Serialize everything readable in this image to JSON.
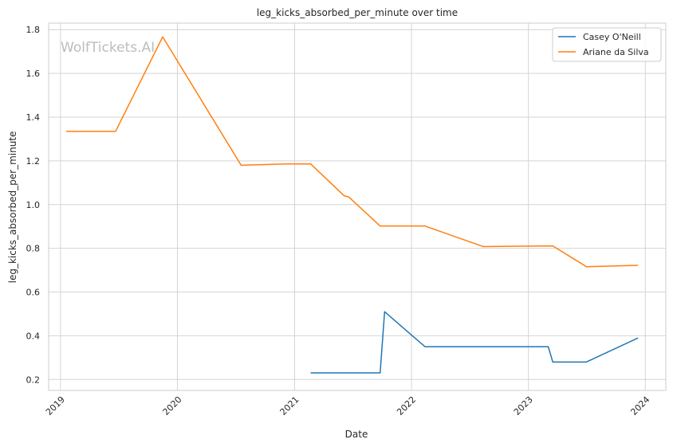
{
  "chart_data": {
    "type": "line",
    "title": "leg_kicks_absorbed_per_minute over time",
    "xlabel": "Date",
    "ylabel": "leg_kicks_absorbed_per_minute",
    "watermark": "WolfTickets.AI",
    "xlim": [
      "2018-11-25",
      "2024-03-05"
    ],
    "ylim": [
      0.15,
      1.83
    ],
    "x_ticks": [
      "2019-01-01",
      "2020-01-01",
      "2021-01-01",
      "2022-01-01",
      "2023-01-01",
      "2024-01-01"
    ],
    "x_tick_labels": [
      "2019",
      "2020",
      "2021",
      "2022",
      "2023",
      "2024"
    ],
    "y_ticks": [
      0.2,
      0.4,
      0.6,
      0.8,
      1.0,
      1.2,
      1.4,
      1.6,
      1.8
    ],
    "y_tick_labels": [
      "0.2",
      "0.4",
      "0.6",
      "0.8",
      "1.0",
      "1.2",
      "1.4",
      "1.6",
      "1.8"
    ],
    "grid": true,
    "legend_position": "top-right",
    "series": [
      {
        "name": "Casey O'Neill",
        "color": "#1f77b4",
        "points": [
          {
            "x": "2021-02-20",
            "y": 0.23
          },
          {
            "x": "2021-09-25",
            "y": 0.23
          },
          {
            "x": "2021-10-09",
            "y": 0.51
          },
          {
            "x": "2022-02-12",
            "y": 0.35
          },
          {
            "x": "2023-03-04",
            "y": 0.35
          },
          {
            "x": "2023-03-18",
            "y": 0.28
          },
          {
            "x": "2023-07-01",
            "y": 0.28
          },
          {
            "x": "2023-12-09",
            "y": 0.39
          }
        ]
      },
      {
        "name": "Ariane da Silva",
        "color": "#ff7f0e",
        "points": [
          {
            "x": "2019-01-19",
            "y": 1.335
          },
          {
            "x": "2019-06-22",
            "y": 1.335
          },
          {
            "x": "2019-11-16",
            "y": 1.767
          },
          {
            "x": "2020-07-18",
            "y": 1.18
          },
          {
            "x": "2020-12-05",
            "y": 1.186
          },
          {
            "x": "2021-02-20",
            "y": 1.186
          },
          {
            "x": "2021-06-05",
            "y": 1.04
          },
          {
            "x": "2021-06-19",
            "y": 1.035
          },
          {
            "x": "2021-09-25",
            "y": 0.902
          },
          {
            "x": "2022-02-12",
            "y": 0.902
          },
          {
            "x": "2022-08-13",
            "y": 0.808
          },
          {
            "x": "2023-03-18",
            "y": 0.811
          },
          {
            "x": "2023-07-01",
            "y": 0.716
          },
          {
            "x": "2023-12-09",
            "y": 0.722
          }
        ]
      }
    ]
  }
}
